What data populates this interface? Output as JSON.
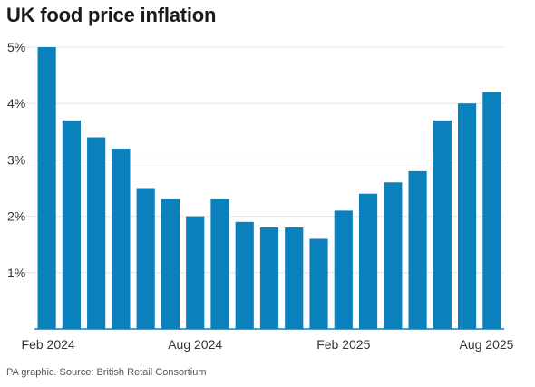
{
  "chart_data": {
    "type": "bar",
    "title": "UK food price inflation",
    "categories": [
      "Feb 2024",
      "Mar 2024",
      "Apr 2024",
      "May 2024",
      "Jun 2024",
      "Jul 2024",
      "Aug 2024",
      "Sep 2024",
      "Oct 2024",
      "Nov 2024",
      "Dec 2024",
      "Jan 2025",
      "Feb 2025",
      "Mar 2025",
      "Apr 2025",
      "May 2025",
      "Jun 2025",
      "Jul 2025",
      "Aug 2025"
    ],
    "values": [
      5.0,
      3.7,
      3.4,
      3.2,
      2.5,
      2.3,
      2.0,
      2.3,
      1.9,
      1.8,
      1.8,
      1.6,
      2.1,
      2.4,
      2.6,
      2.8,
      3.7,
      4.0,
      4.2
    ],
    "x_tick_labels": [
      "Feb 2024",
      "Aug 2024",
      "Feb 2025",
      "Aug 2025"
    ],
    "y_tick_labels": [
      "1%",
      "2%",
      "3%",
      "4%",
      "5%"
    ],
    "ylim": [
      0,
      5
    ],
    "grid": true,
    "colors": {
      "bar": "#0a80bd",
      "grid": "#e4e4e4",
      "baseline": "#0a80bd"
    },
    "source": "PA graphic. Source: British Retail Consortium"
  }
}
